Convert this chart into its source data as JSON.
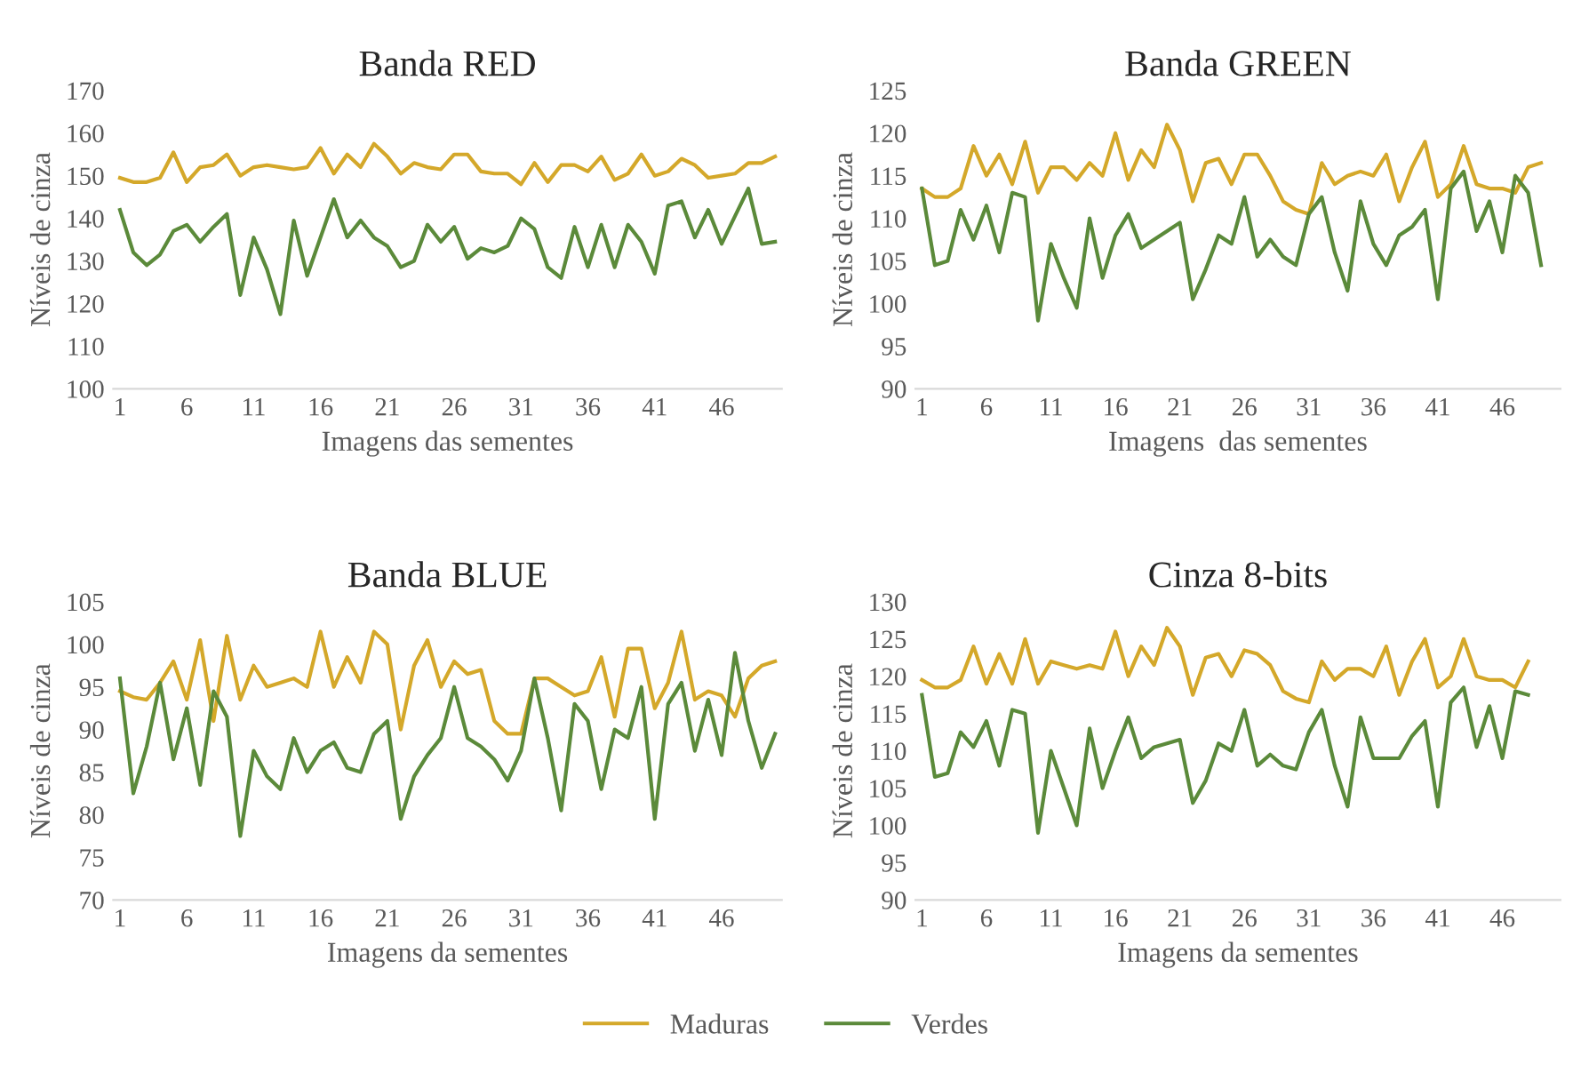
{
  "chart_data": [
    {
      "type": "line",
      "title": "Banda RED",
      "xlabel": "Imagens das sementes",
      "ylabel": "Níveis de cinza",
      "ylim": [
        100,
        170
      ],
      "yticks": [
        100,
        110,
        120,
        130,
        140,
        150,
        160,
        170
      ],
      "grid": false,
      "legend": "bottom",
      "categories": [
        "1",
        null,
        null,
        null,
        null,
        "6",
        null,
        null,
        null,
        null,
        "11",
        null,
        null,
        null,
        null,
        "16",
        null,
        null,
        null,
        null,
        "21",
        null,
        null,
        null,
        null,
        "26",
        null,
        null,
        null,
        null,
        "31",
        null,
        null,
        null,
        null,
        "36",
        null,
        null,
        null,
        null,
        "41",
        null,
        null,
        null,
        null,
        "46",
        null,
        null,
        null,
        null
      ],
      "series": [
        {
          "name": "Maduras",
          "color": "#d4a82a",
          "values": [
            149.5,
            148.5,
            148.5,
            149.5,
            155.5,
            148.5,
            152,
            152.5,
            155,
            150,
            152,
            152.5,
            152,
            151.5,
            152,
            156.5,
            150.5,
            155,
            152,
            157.5,
            154.5,
            150.5,
            153,
            152,
            151.5,
            155,
            155,
            151,
            150.5,
            150.5,
            148,
            153,
            148.5,
            152.5,
            152.5,
            151,
            154.5,
            149,
            150.5,
            155,
            150,
            151,
            154,
            152.5,
            149.5,
            150,
            150.5,
            153,
            153,
            154.5
          ]
        },
        {
          "name": "Verdes",
          "color": "#5b8a3a",
          "values": [
            142,
            132,
            129,
            131.5,
            137,
            138.5,
            134.5,
            138,
            141,
            122,
            135.5,
            128,
            117.5,
            139.5,
            126.5,
            135.5,
            144.5,
            135.5,
            139.5,
            135.5,
            133.5,
            128.5,
            130,
            138.5,
            134.5,
            138,
            130.5,
            133,
            132,
            133.5,
            140,
            137.5,
            128.5,
            126,
            138,
            128.5,
            138.5,
            128.5,
            138.5,
            134.5,
            127,
            143,
            144,
            135.5,
            142,
            134,
            140.5,
            147,
            134,
            134.5
          ]
        }
      ]
    },
    {
      "type": "line",
      "title": "Banda GREEN",
      "xlabel": "Imagens  das sementes",
      "ylabel": "Níveis de cinza",
      "ylim": [
        90,
        125
      ],
      "yticks": [
        90,
        95,
        100,
        105,
        110,
        115,
        120,
        125
      ],
      "grid": false,
      "categories": [
        "1",
        null,
        null,
        null,
        null,
        "6",
        null,
        null,
        null,
        null,
        "11",
        null,
        null,
        null,
        null,
        "16",
        null,
        null,
        null,
        null,
        "21",
        null,
        null,
        null,
        null,
        "26",
        null,
        null,
        null,
        null,
        "31",
        null,
        null,
        null,
        null,
        "36",
        null,
        null,
        null,
        null,
        "41",
        null,
        null,
        null,
        null,
        "46",
        null,
        null,
        null,
        null
      ],
      "series": [
        {
          "color": "#d4a82a",
          "values": [
            113.5,
            112.5,
            112.5,
            113.5,
            118.5,
            115,
            117.5,
            114,
            119,
            113,
            116,
            116,
            114.5,
            116.5,
            115,
            120,
            114.5,
            118,
            116,
            121,
            118,
            112,
            116.5,
            117,
            114,
            117.5,
            117.5,
            115,
            112,
            111,
            110.5,
            116.5,
            114,
            115,
            115.5,
            115,
            117.5,
            112,
            116,
            119,
            112.5,
            114,
            118.5,
            114,
            113.5,
            113.5,
            113,
            116,
            116.5,
            null
          ]
        },
        {
          "color": "#5b8a3a",
          "values": [
            113.5,
            104.5,
            105,
            111,
            107.5,
            111.5,
            106,
            113,
            112.5,
            98,
            107,
            103,
            99.5,
            110,
            103,
            108,
            110.5,
            106.5,
            107.5,
            108.5,
            109.5,
            100.5,
            104,
            108,
            107,
            112.5,
            105.5,
            107.5,
            105.5,
            104.5,
            110.5,
            112.5,
            106,
            101.5,
            112,
            107,
            104.5,
            108,
            109,
            111,
            100.5,
            113.5,
            115.5,
            108.5,
            112,
            106,
            115,
            113,
            104.5,
            null
          ]
        }
      ]
    },
    {
      "type": "line",
      "title": "Banda BLUE",
      "xlabel": "Imagens da sementes",
      "ylabel": "Níveis de cinza",
      "ylim": [
        70,
        105
      ],
      "yticks": [
        70,
        75,
        80,
        85,
        90,
        95,
        100,
        105
      ],
      "grid": false,
      "categories": [
        "1",
        null,
        null,
        null,
        null,
        "6",
        null,
        null,
        null,
        null,
        "11",
        null,
        null,
        null,
        null,
        "16",
        null,
        null,
        null,
        null,
        "21",
        null,
        null,
        null,
        null,
        "26",
        null,
        null,
        null,
        null,
        "31",
        null,
        null,
        null,
        null,
        "36",
        null,
        null,
        null,
        null,
        "41",
        null,
        null,
        null,
        null,
        "46",
        null,
        null,
        null,
        null
      ],
      "series": [
        {
          "color": "#d4a82a",
          "values": [
            94.5,
            93.8,
            93.5,
            95.5,
            98,
            93.5,
            100.5,
            91,
            101,
            93.5,
            97.5,
            95,
            95.5,
            96,
            95,
            101.5,
            95,
            98.5,
            95.5,
            101.5,
            100,
            90,
            97.5,
            100.5,
            95,
            98,
            96.5,
            97,
            91,
            89.5,
            89.5,
            96,
            96,
            95,
            94,
            94.5,
            98.5,
            91.5,
            99.5,
            99.5,
            92.5,
            95.5,
            101.5,
            93.5,
            94.5,
            94,
            91.5,
            96,
            97.5,
            98
          ]
        },
        {
          "color": "#5b8a3a",
          "values": [
            96,
            82.5,
            88,
            95.5,
            86.5,
            92.5,
            83.5,
            94.5,
            91.5,
            77.5,
            87.5,
            84.5,
            83,
            89,
            85,
            87.5,
            88.5,
            85.5,
            85,
            89.5,
            91,
            79.5,
            84.5,
            87,
            89,
            95,
            89,
            88,
            86.5,
            84,
            87.5,
            96,
            89,
            80.5,
            93,
            91,
            83,
            90,
            89,
            95,
            79.5,
            93,
            95.5,
            87.5,
            93.5,
            87,
            99,
            91,
            85.5,
            89.5
          ]
        }
      ]
    },
    {
      "type": "line",
      "title": "Cinza 8-bits",
      "xlabel": "Imagens da sementes",
      "ylabel": "Níveis de cinza",
      "ylim": [
        90,
        130
      ],
      "yticks": [
        90,
        95,
        100,
        105,
        110,
        115,
        120,
        125,
        130
      ],
      "grid": false,
      "categories": [
        "1",
        null,
        null,
        null,
        null,
        "6",
        null,
        null,
        null,
        null,
        "11",
        null,
        null,
        null,
        null,
        "16",
        null,
        null,
        null,
        null,
        "21",
        null,
        null,
        null,
        null,
        "26",
        null,
        null,
        null,
        null,
        "31",
        null,
        null,
        null,
        null,
        "36",
        null,
        null,
        null,
        null,
        "41",
        null,
        null,
        null,
        null,
        "46",
        null,
        null,
        null,
        null
      ],
      "series": [
        {
          "color": "#d4a82a",
          "values": [
            119.5,
            118.5,
            118.5,
            119.5,
            124,
            119,
            123,
            119,
            125,
            119,
            122,
            121.5,
            121,
            121.5,
            121,
            126,
            120,
            124,
            121.5,
            126.5,
            124,
            117.5,
            122.5,
            123,
            120,
            123.5,
            123,
            121.5,
            118,
            117,
            116.5,
            122,
            119.5,
            121,
            121,
            120,
            124,
            117.5,
            122,
            125,
            118.5,
            120,
            125,
            120,
            119.5,
            119.5,
            118.5,
            122,
            null,
            null
          ]
        },
        {
          "color": "#5b8a3a",
          "values": [
            117.5,
            106.5,
            107,
            112.5,
            110.5,
            114,
            108,
            115.5,
            115,
            99,
            110,
            105,
            100,
            113,
            105,
            110,
            114.5,
            109,
            110.5,
            111,
            111.5,
            103,
            106,
            111,
            110,
            115.5,
            108,
            109.5,
            108,
            107.5,
            112.5,
            115.5,
            108,
            102.5,
            114.5,
            109,
            109,
            109,
            112,
            114,
            102.5,
            116.5,
            118.5,
            110.5,
            116,
            109,
            118,
            117.5,
            null,
            null
          ]
        }
      ]
    }
  ]
}
